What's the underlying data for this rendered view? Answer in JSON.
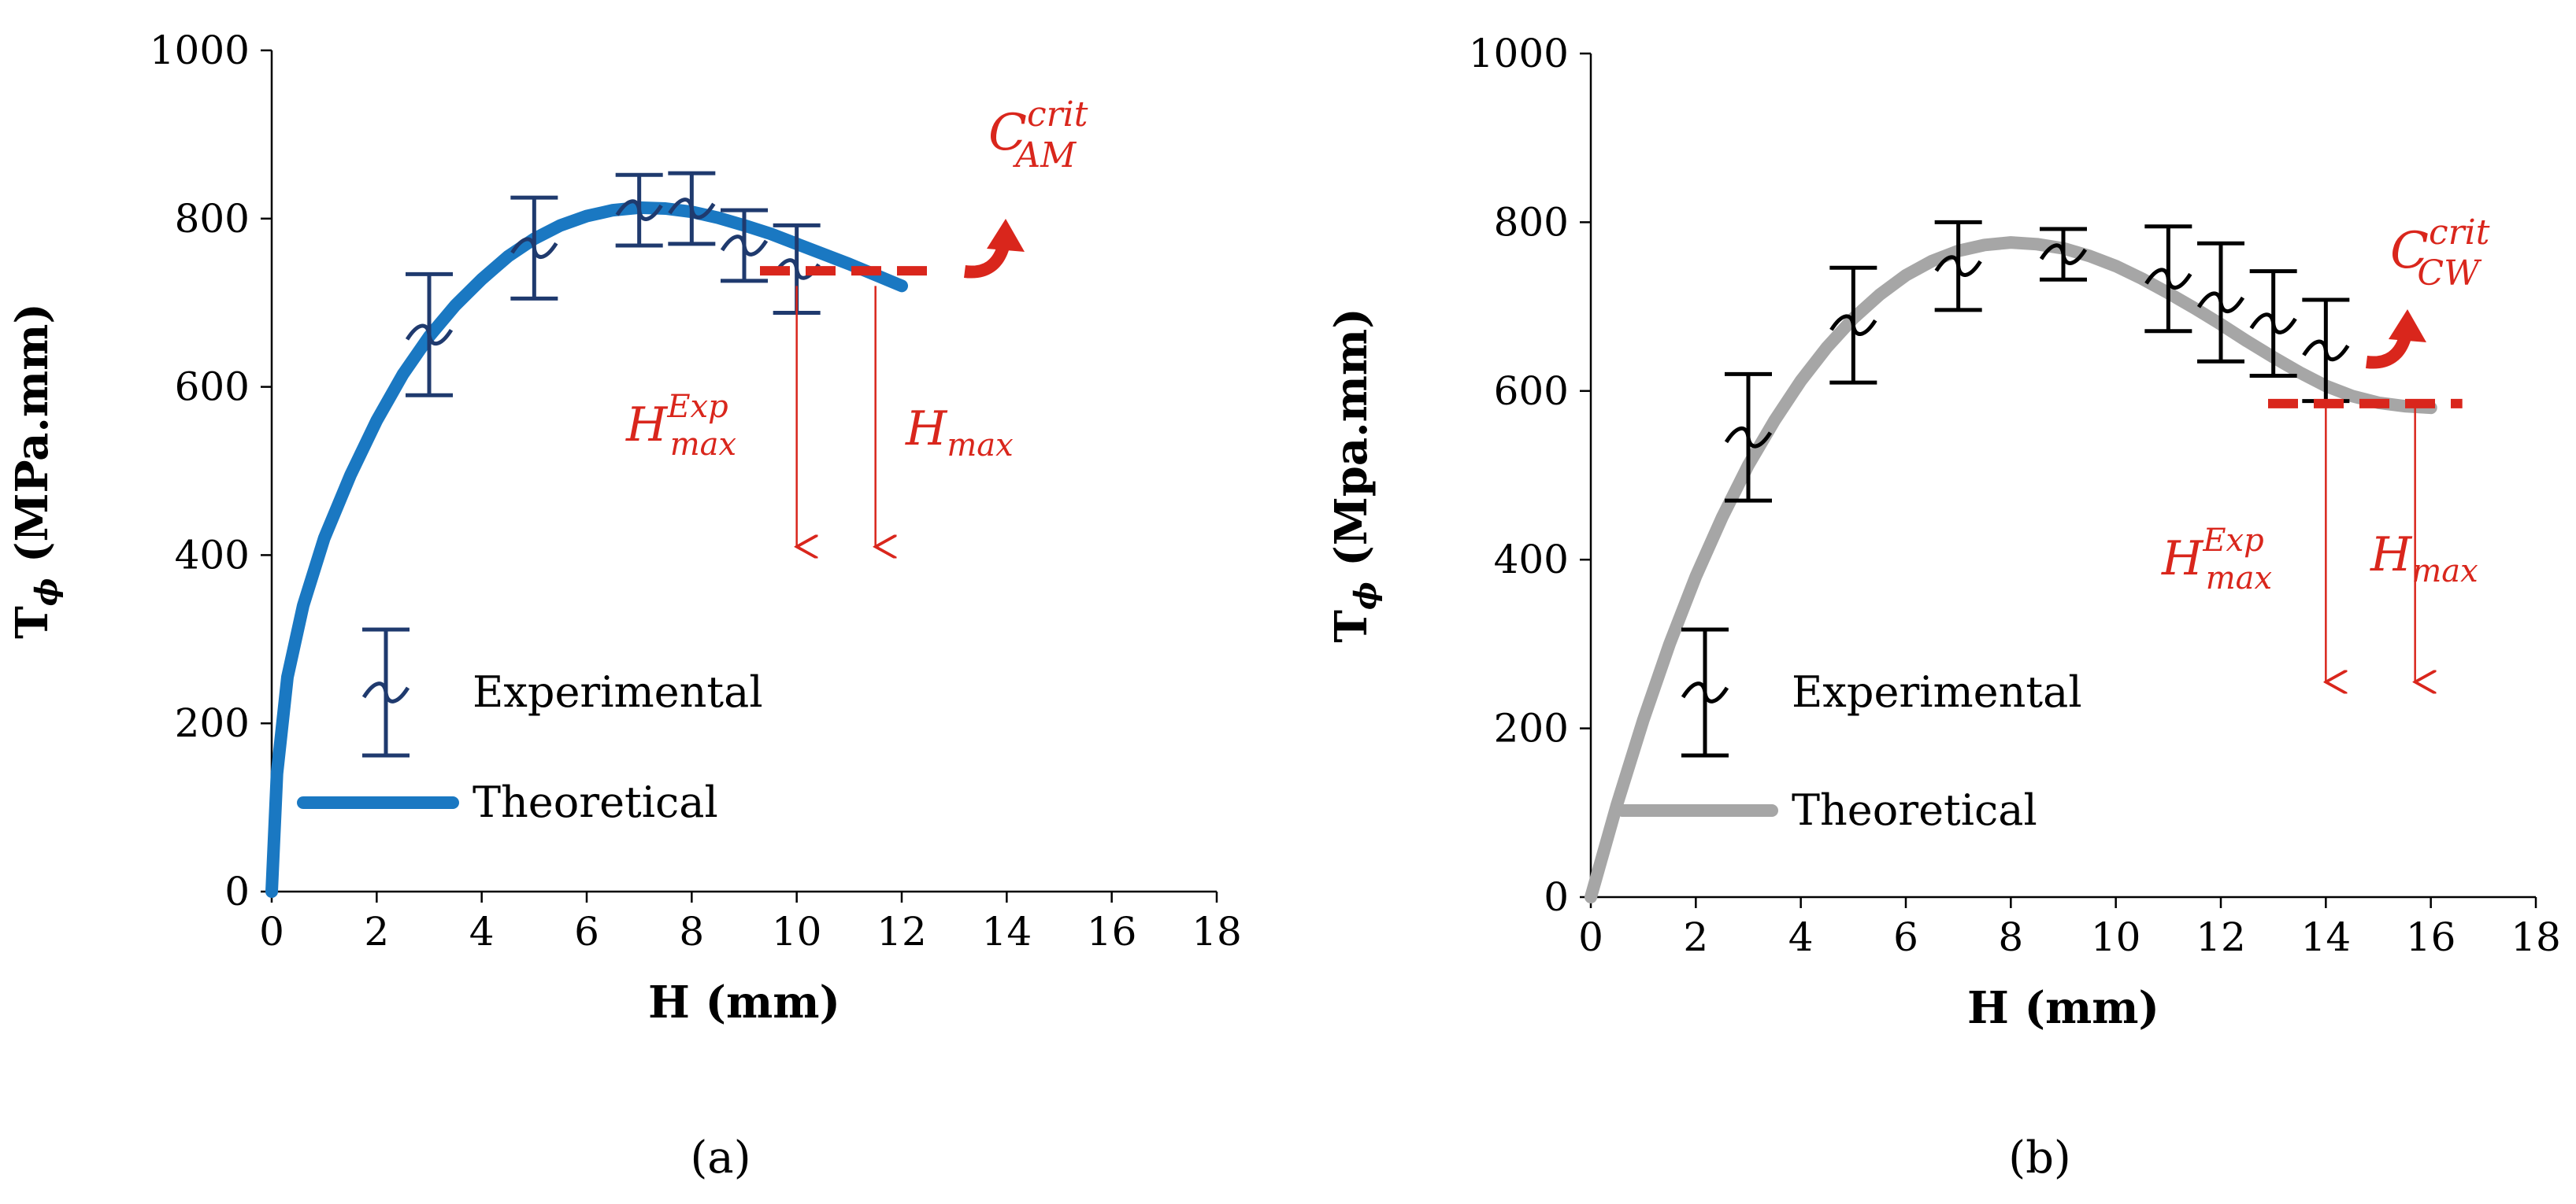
{
  "chart_data": [
    {
      "id": "a",
      "type": "line",
      "caption": "(a)",
      "xlabel": "H (mm)",
      "ylabel": "T",
      "ylabel_sub": "ϕ",
      "ylabel_rest": " (MPa.mm)",
      "xlim": [
        0,
        18
      ],
      "ylim": [
        0,
        1000
      ],
      "x_ticks": [
        "0",
        "2",
        "4",
        "6",
        "8",
        "10",
        "12",
        "14",
        "16",
        "18"
      ],
      "y_ticks": [
        "0",
        "200",
        "400",
        "600",
        "800",
        "1000"
      ],
      "grid": false,
      "legend_position": "lower-left",
      "colors": {
        "experimental": "#1f3a6e",
        "theoretical": "#1a78c2",
        "annotation": "#d9261c"
      },
      "series": [
        {
          "name": "Experimental",
          "kind": "errorbar",
          "x": [
            3,
            5,
            7,
            8,
            9,
            10
          ],
          "y": [
            662,
            765,
            810,
            812,
            768,
            740
          ],
          "err_low": [
            72,
            60,
            42,
            42,
            42,
            52
          ],
          "err_high": [
            72,
            60,
            42,
            42,
            42,
            52
          ]
        },
        {
          "name": "Theoretical",
          "kind": "line",
          "x": [
            0,
            0.1,
            0.3,
            0.6,
            1,
            1.5,
            2,
            2.5,
            3,
            3.5,
            4,
            4.5,
            5,
            5.5,
            6,
            6.5,
            7,
            7.5,
            8,
            8.5,
            9,
            9.5,
            10,
            10.5,
            11,
            11.5,
            12
          ],
          "y": [
            0,
            140,
            255,
            340,
            420,
            495,
            560,
            615,
            660,
            697,
            728,
            755,
            776,
            792,
            803,
            810,
            813,
            812,
            808,
            801,
            792,
            782,
            770,
            758,
            746,
            733,
            720
          ]
        }
      ],
      "annotations": {
        "crit_main": "C",
        "crit_sup": "crit",
        "crit_sub": "AM",
        "hexp_main": "H",
        "hexp_sup": "Exp",
        "hexp_sub": "max",
        "hmax_main": "H",
        "hmax_sub": "max",
        "crit_line_y": 738,
        "crit_line_x": [
          9.3,
          12.6
        ],
        "hexp_arrow_x": 10,
        "hmax_arrow_x": 11.5,
        "arrow_y": [
          720,
          410
        ]
      }
    },
    {
      "id": "b",
      "type": "line",
      "caption": "(b)",
      "xlabel": "H (mm)",
      "ylabel": "T",
      "ylabel_sub": "ϕ",
      "ylabel_rest": " (Mpa.mm)",
      "xlim": [
        0,
        18
      ],
      "ylim": [
        0,
        1000
      ],
      "x_ticks": [
        "0",
        "2",
        "4",
        "6",
        "8",
        "10",
        "12",
        "14",
        "16",
        "18"
      ],
      "y_ticks": [
        "0",
        "200",
        "400",
        "600",
        "800",
        "1000"
      ],
      "grid": false,
      "legend_position": "lower-left",
      "colors": {
        "experimental": "#000000",
        "theoretical": "#a6a6a6",
        "annotation": "#d9261c"
      },
      "series": [
        {
          "name": "Experimental",
          "kind": "errorbar",
          "x": [
            3,
            5,
            7,
            9,
            11,
            12,
            13,
            14
          ],
          "y": [
            545,
            678,
            748,
            762,
            733,
            705,
            680,
            648
          ],
          "err_low": [
            75,
            68,
            52,
            30,
            62,
            70,
            62,
            60
          ],
          "err_high": [
            75,
            68,
            52,
            30,
            62,
            70,
            62,
            60
          ]
        },
        {
          "name": "Theoretical",
          "kind": "line",
          "x": [
            0,
            0.5,
            1,
            1.5,
            2,
            2.5,
            3,
            3.5,
            4,
            4.5,
            5,
            5.5,
            6,
            6.5,
            7,
            7.5,
            8,
            8.5,
            9,
            9.5,
            10,
            10.5,
            11,
            11.5,
            12,
            12.5,
            13,
            13.5,
            14,
            14.5,
            15,
            15.5,
            16
          ],
          "y": [
            0,
            110,
            210,
            300,
            380,
            450,
            512,
            565,
            612,
            652,
            686,
            714,
            737,
            754,
            766,
            773,
            776,
            774,
            769,
            760,
            748,
            733,
            716,
            698,
            679,
            659,
            640,
            622,
            606,
            594,
            586,
            582,
            580
          ]
        }
      ],
      "annotations": {
        "crit_main": "C",
        "crit_sup": "crit",
        "crit_sub": "CW",
        "hexp_main": "H",
        "hexp_sup": "Exp",
        "hexp_sub": "max",
        "hmax_main": "H",
        "hmax_sub": "max",
        "crit_line_y": 585,
        "crit_line_x": [
          12.9,
          16.6
        ],
        "hexp_arrow_x": 14,
        "hmax_arrow_x": 15.7,
        "arrow_y": [
          580,
          255
        ]
      }
    }
  ]
}
